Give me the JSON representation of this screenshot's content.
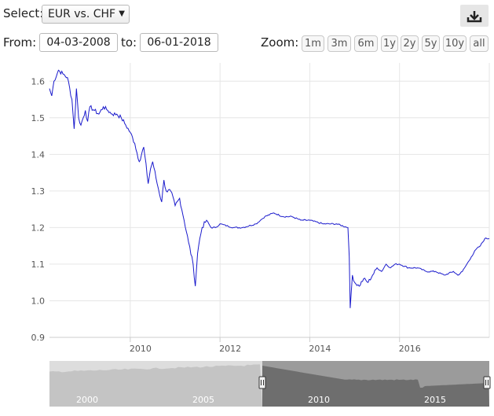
{
  "controls": {
    "select_label": "Select:",
    "select_value": "EUR vs. CHF",
    "from_label": "From:",
    "from_value": "04-03-2008",
    "to_label": "to:",
    "to_value": "06-01-2018",
    "zoom_label": "Zoom:",
    "zoom_buttons": [
      "1m",
      "3m",
      "6m",
      "1y",
      "2y",
      "5y",
      "10y",
      "all"
    ]
  },
  "chart_data": {
    "type": "line",
    "title": "",
    "xlabel": "",
    "ylabel": "",
    "ylim": [
      0.9,
      1.65
    ],
    "xlim": [
      2008.2,
      2018.0
    ],
    "y_ticks": [
      1.6,
      1.5,
      1.4,
      1.3,
      1.2,
      1.1,
      1.0,
      0.9
    ],
    "x_ticks": [
      "2010",
      "2012",
      "2014",
      "2016"
    ],
    "grid": true,
    "series": [
      {
        "name": "",
        "color": "#1a1acc",
        "x": [
          2008.2,
          2008.25,
          2008.3,
          2008.4,
          2008.5,
          2008.6,
          2008.7,
          2008.75,
          2008.8,
          2008.85,
          2008.9,
          2009.0,
          2009.05,
          2009.1,
          2009.2,
          2009.3,
          2009.4,
          2009.5,
          2009.6,
          2009.7,
          2009.8,
          2009.9,
          2010.0,
          2010.1,
          2010.2,
          2010.3,
          2010.4,
          2010.45,
          2010.5,
          2010.6,
          2010.7,
          2010.75,
          2010.8,
          2010.9,
          2011.0,
          2011.1,
          2011.2,
          2011.3,
          2011.4,
          2011.45,
          2011.5,
          2011.55,
          2011.6,
          2011.7,
          2011.8,
          2011.9,
          2012.0,
          2012.3,
          2012.5,
          2012.8,
          2012.9,
          2013.0,
          2013.2,
          2013.4,
          2013.6,
          2013.8,
          2014.0,
          2014.3,
          2014.6,
          2014.85,
          2014.88,
          2014.9,
          2014.95,
          2015.0,
          2015.1,
          2015.2,
          2015.3,
          2015.4,
          2015.5,
          2015.6,
          2015.7,
          2015.8,
          2015.9,
          2016.0,
          2016.2,
          2016.4,
          2016.6,
          2016.8,
          2017.0,
          2017.2,
          2017.3,
          2017.4,
          2017.5,
          2017.6,
          2017.7,
          2017.8,
          2017.9,
          2018.0
        ],
        "values": [
          1.58,
          1.56,
          1.6,
          1.63,
          1.62,
          1.61,
          1.55,
          1.47,
          1.58,
          1.5,
          1.48,
          1.52,
          1.49,
          1.53,
          1.52,
          1.51,
          1.53,
          1.52,
          1.51,
          1.51,
          1.5,
          1.48,
          1.46,
          1.43,
          1.38,
          1.42,
          1.32,
          1.36,
          1.38,
          1.32,
          1.27,
          1.33,
          1.3,
          1.3,
          1.26,
          1.28,
          1.22,
          1.16,
          1.1,
          1.04,
          1.13,
          1.17,
          1.2,
          1.22,
          1.2,
          1.2,
          1.21,
          1.2,
          1.2,
          1.21,
          1.22,
          1.23,
          1.24,
          1.23,
          1.23,
          1.22,
          1.22,
          1.21,
          1.21,
          1.2,
          1.12,
          0.98,
          1.07,
          1.05,
          1.04,
          1.06,
          1.05,
          1.07,
          1.09,
          1.08,
          1.1,
          1.09,
          1.1,
          1.1,
          1.09,
          1.09,
          1.08,
          1.08,
          1.07,
          1.08,
          1.07,
          1.08,
          1.1,
          1.12,
          1.14,
          1.15,
          1.17,
          1.17
        ]
      }
    ],
    "navigator": {
      "x_ticks": [
        "2000",
        "2005",
        "2010",
        "2015"
      ]
    }
  }
}
